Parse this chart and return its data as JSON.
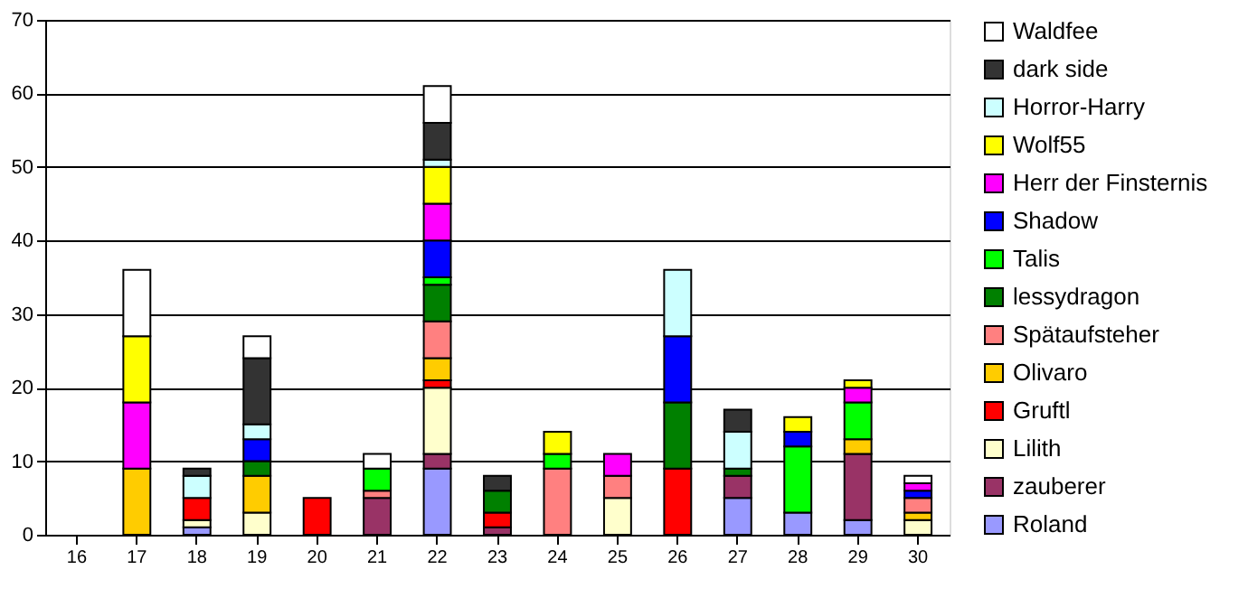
{
  "chart_data": {
    "type": "bar",
    "stacked": true,
    "categories": [
      "16",
      "17",
      "18",
      "19",
      "20",
      "21",
      "22",
      "23",
      "24",
      "25",
      "26",
      "27",
      "28",
      "29",
      "30"
    ],
    "ylim": [
      0,
      70
    ],
    "yticks": [
      0,
      10,
      20,
      30,
      40,
      50,
      60,
      70
    ],
    "grid": "y",
    "legend": "right",
    "series": [
      {
        "name": "Roland",
        "color": "#9999ff",
        "values": [
          null,
          null,
          1,
          null,
          null,
          null,
          9,
          null,
          null,
          null,
          null,
          5,
          3,
          2,
          null
        ]
      },
      {
        "name": "zauberer",
        "color": "#993366",
        "values": [
          null,
          null,
          null,
          null,
          null,
          5,
          2,
          1,
          null,
          null,
          null,
          3,
          null,
          9,
          null
        ]
      },
      {
        "name": "Lilith",
        "color": "#ffffcc",
        "values": [
          null,
          null,
          1,
          3,
          null,
          null,
          9,
          null,
          null,
          5,
          null,
          null,
          null,
          null,
          2
        ]
      },
      {
        "name": "Gruftl",
        "color": "#ff0000",
        "values": [
          null,
          null,
          3,
          null,
          5,
          null,
          1,
          2,
          null,
          null,
          9,
          null,
          null,
          null,
          null
        ]
      },
      {
        "name": "Olivaro",
        "color": "#ffcc00",
        "values": [
          null,
          9,
          null,
          5,
          null,
          null,
          3,
          null,
          null,
          null,
          null,
          null,
          null,
          2,
          1
        ]
      },
      {
        "name": "Spätaufsteher",
        "color": "#ff8080",
        "values": [
          null,
          null,
          null,
          null,
          null,
          1,
          5,
          null,
          9,
          3,
          null,
          null,
          null,
          null,
          2
        ]
      },
      {
        "name": "lessydragon",
        "color": "#008000",
        "values": [
          null,
          null,
          null,
          2,
          null,
          null,
          5,
          3,
          null,
          null,
          9,
          1,
          null,
          null,
          null
        ]
      },
      {
        "name": "Talis",
        "color": "#00ff00",
        "values": [
          null,
          null,
          null,
          null,
          null,
          3,
          1,
          null,
          2,
          null,
          null,
          null,
          9,
          5,
          null
        ]
      },
      {
        "name": "Shadow",
        "color": "#0000ff",
        "values": [
          null,
          null,
          null,
          3,
          null,
          null,
          5,
          null,
          null,
          null,
          9,
          null,
          2,
          null,
          1
        ]
      },
      {
        "name": "Herr der Finsternis",
        "color": "#ff00ff",
        "values": [
          null,
          9,
          null,
          null,
          null,
          null,
          5,
          null,
          null,
          3,
          null,
          null,
          null,
          2,
          1
        ]
      },
      {
        "name": "Wolf55",
        "color": "#ffff00",
        "values": [
          null,
          9,
          null,
          null,
          null,
          null,
          5,
          null,
          3,
          null,
          null,
          null,
          2,
          1,
          null
        ]
      },
      {
        "name": "Horror-Harry",
        "color": "#ccffff",
        "values": [
          null,
          null,
          3,
          2,
          null,
          null,
          1,
          null,
          null,
          null,
          9,
          5,
          null,
          null,
          null
        ]
      },
      {
        "name": "dark side",
        "color": "#333333",
        "values": [
          null,
          null,
          1,
          9,
          null,
          null,
          5,
          2,
          null,
          null,
          null,
          3,
          null,
          null,
          null
        ]
      },
      {
        "name": "Waldfee",
        "color": "#ffffff",
        "values": [
          null,
          9,
          null,
          3,
          null,
          2,
          5,
          null,
          null,
          null,
          null,
          null,
          null,
          null,
          1
        ]
      }
    ]
  }
}
